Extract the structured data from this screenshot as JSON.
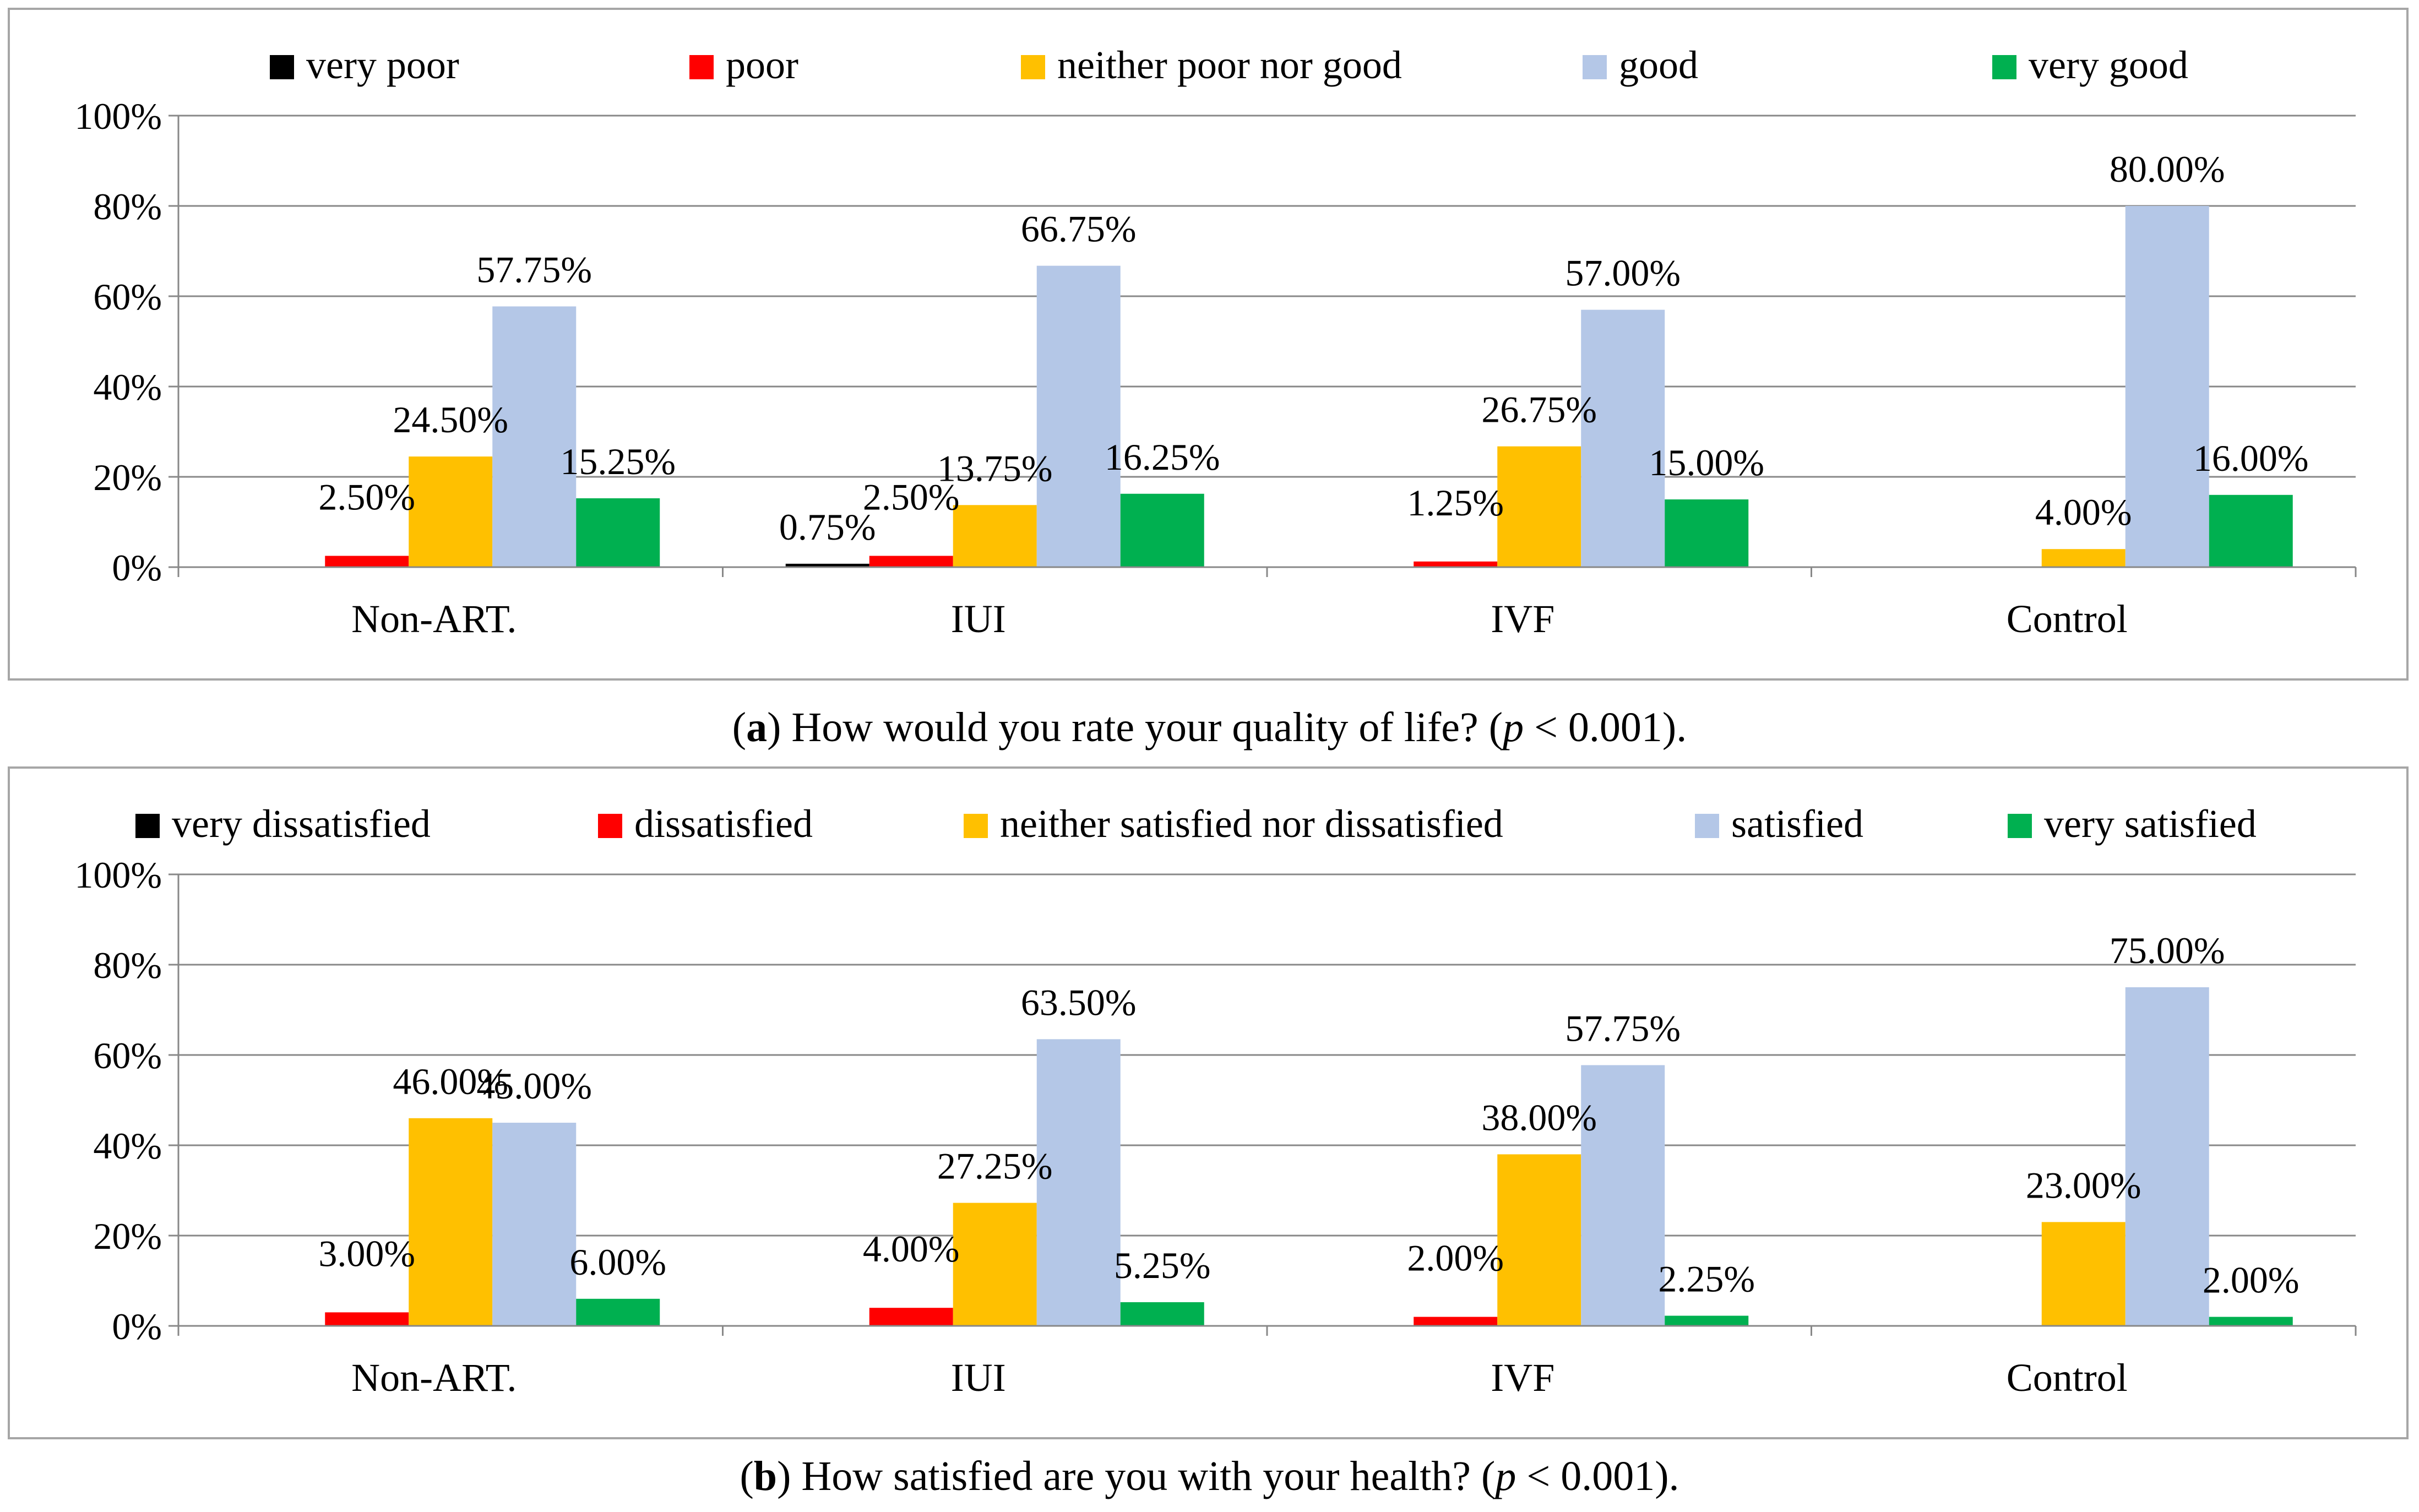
{
  "figures": [
    {
      "caption": {
        "letter": "a",
        "text": "How would you rate your quality of life? (",
        "p": "p",
        "tail": " < 0.001)."
      }
    },
    {
      "caption": {
        "letter": "b",
        "text": "How satisfied are you with your health? (",
        "p": "p",
        "tail": " < 0.001)."
      }
    }
  ],
  "chart_data": [
    {
      "type": "bar",
      "categories": [
        "Non-ART.",
        "IUI",
        "IVF",
        "Control"
      ],
      "ylim": [
        0,
        100
      ],
      "yticks": [
        "0%",
        "20%",
        "40%",
        "60%",
        "80%",
        "100%"
      ],
      "grid": true,
      "legend_position": "top",
      "series": [
        {
          "name": "very poor",
          "color": "#000000",
          "values": [
            0,
            0.75,
            0,
            0
          ],
          "labels": [
            "",
            "0.75%",
            "",
            ""
          ]
        },
        {
          "name": "poor",
          "color": "#ff0000",
          "values": [
            2.5,
            2.5,
            1.25,
            0
          ],
          "labels": [
            "2.50%",
            "2.50%",
            "1.25%",
            ""
          ]
        },
        {
          "name": "neither poor nor good",
          "color": "#ffc000",
          "values": [
            24.5,
            13.75,
            26.75,
            4.0
          ],
          "labels": [
            "24.50%",
            "13.75%",
            "26.75%",
            "4.00%"
          ]
        },
        {
          "name": "good",
          "color": "#b4c7e7",
          "values": [
            57.75,
            66.75,
            57.0,
            80.0
          ],
          "labels": [
            "57.75%",
            "66.75%",
            "57.00%",
            "80.00%"
          ]
        },
        {
          "name": "very good",
          "color": "#00b050",
          "values": [
            15.25,
            16.25,
            15.0,
            16.0
          ],
          "labels": [
            "15.25%",
            "16.25%",
            "15.00%",
            "16.00%"
          ]
        }
      ]
    },
    {
      "type": "bar",
      "categories": [
        "Non-ART.",
        "IUI",
        "IVF",
        "Control"
      ],
      "ylim": [
        0,
        100
      ],
      "yticks": [
        "0%",
        "20%",
        "40%",
        "60%",
        "80%",
        "100%"
      ],
      "grid": true,
      "legend_position": "top",
      "series": [
        {
          "name": "very dissatisfied",
          "color": "#000000",
          "values": [
            0,
            0,
            0,
            0
          ],
          "labels": [
            "",
            "",
            "",
            ""
          ]
        },
        {
          "name": "dissatisfied",
          "color": "#ff0000",
          "values": [
            3.0,
            4.0,
            2.0,
            0
          ],
          "labels": [
            "3.00%",
            "4.00%",
            "2.00%",
            ""
          ]
        },
        {
          "name": "neither satisfied nor dissatisfied",
          "color": "#ffc000",
          "values": [
            46.0,
            27.25,
            38.0,
            23.0
          ],
          "labels": [
            "46.00%",
            "27.25%",
            "38.00%",
            "23.00%"
          ]
        },
        {
          "name": "satisfied",
          "color": "#b4c7e7",
          "values": [
            45.0,
            63.5,
            57.75,
            75.0
          ],
          "labels": [
            "45.00%",
            "63.50%",
            "57.75%",
            "75.00%"
          ]
        },
        {
          "name": "very satisfied",
          "color": "#00b050",
          "values": [
            6.0,
            5.25,
            2.25,
            2.0
          ],
          "labels": [
            "6.00%",
            "5.25%",
            "2.25%",
            "2.00%"
          ]
        }
      ]
    }
  ]
}
